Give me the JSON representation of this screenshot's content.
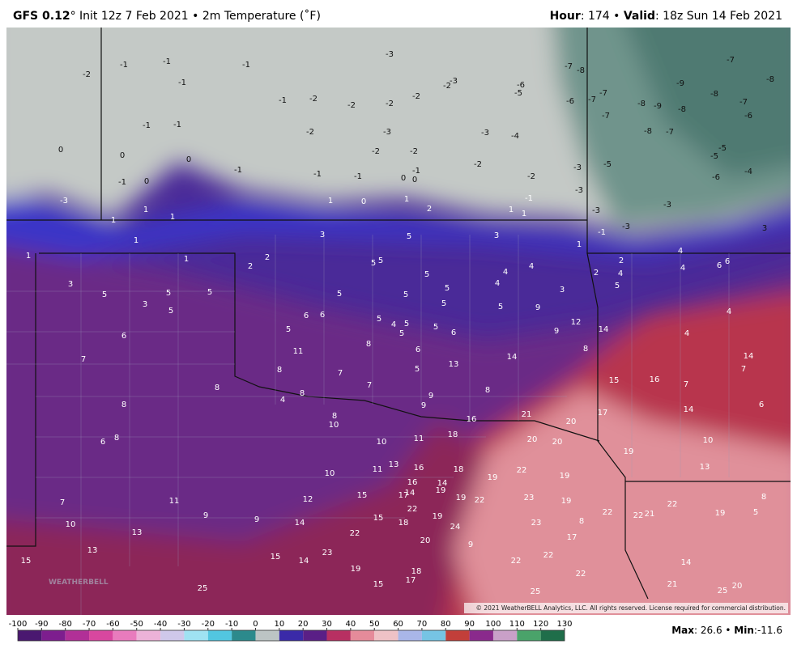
{
  "header": {
    "model": "GFS 0.12",
    "details": "° Init 12z 7 Feb 2021 • 2m Temperature (˚F)",
    "hour_label": "Hour",
    "hour_value": ": 174 • ",
    "valid_label": "Valid",
    "valid_value": ": 18z Sun 14 Feb 2021"
  },
  "map_labels": [
    "-2",
    "-1",
    "-1",
    "-1",
    "-1",
    "-3",
    "-1",
    "-2",
    "-2",
    "-2",
    "-2",
    "-2",
    "-3",
    "-6",
    "-5",
    "-6",
    "-8",
    "-7",
    "-7",
    "-7",
    "-7",
    "-8",
    "-9",
    "-9",
    "-8",
    "-8",
    "-7",
    "-6",
    "-7",
    "-8",
    "-1",
    "-1",
    "-2",
    "-3",
    "-3",
    "-4",
    "-2",
    "-2",
    "-2",
    "0",
    "0",
    "0",
    "-1",
    "-1",
    "-1",
    "0",
    "-1",
    "0",
    "-1",
    "0",
    "-3",
    "-2",
    "-5",
    "-8",
    "-7",
    "-5",
    "-5",
    "-6",
    "-4",
    "-3",
    "-3",
    "-1",
    "-3",
    "-3",
    "-3",
    "-1",
    "1",
    "0",
    "1",
    "2",
    "1",
    "1",
    "1",
    "1",
    "1",
    "1",
    "1",
    "1",
    "2",
    "2",
    "3",
    "5",
    "3",
    "1",
    "3",
    "4",
    "2",
    "4",
    "2",
    "4",
    "5",
    "6",
    "6",
    "5",
    "5",
    "5",
    "5",
    "4",
    "4",
    "4",
    "3",
    "3",
    "5",
    "5",
    "5",
    "3",
    "5",
    "5",
    "5",
    "5",
    "5",
    "9",
    "4",
    "6",
    "6",
    "6",
    "5",
    "5",
    "4",
    "5",
    "5",
    "5",
    "6",
    "6",
    "8",
    "9",
    "12",
    "14",
    "4",
    "7",
    "11",
    "8",
    "14",
    "14",
    "7",
    "8",
    "7",
    "5",
    "13",
    "15",
    "16",
    "7",
    "8",
    "8",
    "7",
    "9",
    "8",
    "4",
    "8",
    "9",
    "8",
    "10",
    "16",
    "21",
    "20",
    "17",
    "14",
    "6",
    "6",
    "8",
    "10",
    "11",
    "18",
    "20",
    "20",
    "19",
    "10",
    "10",
    "11",
    "13",
    "16",
    "18",
    "19",
    "22",
    "19",
    "13",
    "16",
    "14",
    "14",
    "17",
    "19",
    "19",
    "22",
    "23",
    "19",
    "8",
    "7",
    "11",
    "12",
    "15",
    "22",
    "22",
    "22",
    "22",
    "21",
    "19",
    "5",
    "9",
    "9",
    "10",
    "14",
    "15",
    "18",
    "19",
    "24",
    "23",
    "8",
    "13",
    "22",
    "17",
    "20",
    "9",
    "13",
    "15",
    "14",
    "23",
    "22",
    "22",
    "14",
    "15",
    "19",
    "18",
    "17",
    "15",
    "25",
    "25",
    "22",
    "21",
    "20",
    "25"
  ],
  "watermark": "WEATHERBELL",
  "copyright": "© 2021 WeatherBELL Analytics, LLC. All rights reserved. License required for commercial distribution.",
  "colorbar": {
    "ticks": [
      -100,
      -90,
      -80,
      -70,
      -60,
      -50,
      -40,
      -30,
      -20,
      -10,
      0,
      10,
      20,
      30,
      40,
      50,
      60,
      70,
      80,
      90,
      100,
      110,
      120,
      130
    ],
    "colors": [
      "#4a1870",
      "#7d1e8e",
      "#b13097",
      "#d8479f",
      "#e87bbd",
      "#ecb2d8",
      "#cfc8ea",
      "#9fe2f2",
      "#52c6e0",
      "#2c8a8c",
      "#bcc4c4",
      "#3a2aa8",
      "#5a1f86",
      "#b83062",
      "#e58b9a",
      "#eec2c6",
      "#a9b6e8",
      "#76c4e4",
      "#c23f3a",
      "#8a2a8c",
      "#c9a0c8",
      "#4aa36a",
      "#1f6e4a"
    ]
  },
  "footer": {
    "max_label": "Max",
    "max_value": ": 26.6 • ",
    "min_label": "Min",
    "min_value": ":-11.6"
  }
}
